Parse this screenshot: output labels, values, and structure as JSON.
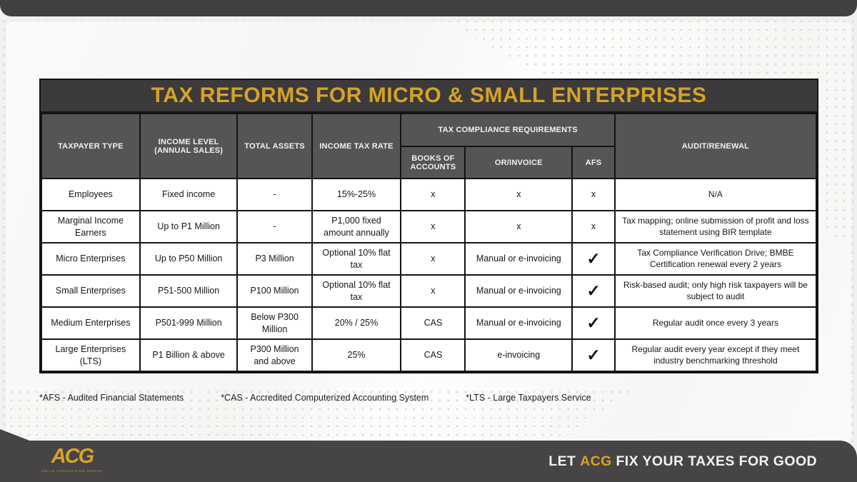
{
  "title": "TAX REFORMS FOR MICRO & SMALL ENTERPRISES",
  "table": {
    "headers": {
      "taxpayer_type": "TAXPAYER TYPE",
      "income_level": "INCOME LEVEL (ANNUAL SALES)",
      "total_assets": "TOTAL ASSETS",
      "income_tax_rate": "INCOME TAX RATE",
      "tax_compliance_group": "TAX COMPLIANCE REQUIREMENTS",
      "books_of_accounts": "BOOKS OF ACCOUNTS",
      "or_invoice": "OR/INVOICE",
      "afs": "AFS",
      "audit_renewal": "AUDIT/RENEWAL"
    },
    "rows": [
      {
        "taxpayer_type": "Employees",
        "income_level": "Fixed income",
        "total_assets": "-",
        "income_tax_rate": "15%-25%",
        "books_of_accounts": "x",
        "or_invoice": "x",
        "afs": "x",
        "audit_renewal": "N/A"
      },
      {
        "taxpayer_type": "Marginal Income Earners",
        "income_level": "Up to P1 Million",
        "total_assets": "-",
        "income_tax_rate": "P1,000 fixed amount annually",
        "books_of_accounts": "x",
        "or_invoice": "x",
        "afs": "x",
        "audit_renewal": "Tax mapping; online submission of profit and loss statement using BIR template"
      },
      {
        "taxpayer_type": "Micro Enterprises",
        "income_level": "Up to P50 Million",
        "total_assets": "P3 Million",
        "income_tax_rate": "Optional 10% flat tax",
        "books_of_accounts": "x",
        "or_invoice": "Manual or e-invoicing",
        "afs": "✓",
        "audit_renewal": "Tax Compliance Verification Drive; BMBE Certification renewal every 2 years"
      },
      {
        "taxpayer_type": "Small Enterprises",
        "income_level": "P51-500 Million",
        "total_assets": "P100 Million",
        "income_tax_rate": "Optional 10% flat tax",
        "books_of_accounts": "x",
        "or_invoice": "Manual or e-invoicing",
        "afs": "✓",
        "audit_renewal": "Risk-based audit; only high risk taxpayers will be subject to audit"
      },
      {
        "taxpayer_type": "Medium Enterprises",
        "income_level": "P501-999 Million",
        "total_assets": "Below P300 Million",
        "income_tax_rate": "20% / 25%",
        "books_of_accounts": "CAS",
        "or_invoice": "Manual or e-invoicing",
        "afs": "✓",
        "audit_renewal": "Regular audit once every 3 years"
      },
      {
        "taxpayer_type": "Large Enterprises (LTS)",
        "income_level": "P1 Billion & above",
        "total_assets": "P300 Million and above",
        "income_tax_rate": "25%",
        "books_of_accounts": "CAS",
        "or_invoice": "e-invoicing",
        "afs": "✓",
        "audit_renewal": "Regular audit every year except if they meet industry benchmarking threshold"
      }
    ]
  },
  "footnotes": [
    "*AFS - Audited Financial Statements",
    "*CAS - Accredited Computerized Accounting System",
    "*LTS - Large Taxpayers Service"
  ],
  "footer": {
    "logo_text": "ACG",
    "logo_subtext": "ASIAN CONSULTING GROUP",
    "tagline_pre": "LET ",
    "tagline_brand": "ACG",
    "tagline_post": " FIX YOUR TAXES FOR GOOD"
  },
  "colors": {
    "gold": "#d6a325",
    "dark_charcoal": "#3c3a3b",
    "header_gray": "#575455",
    "bottom_bar": "#474445"
  }
}
